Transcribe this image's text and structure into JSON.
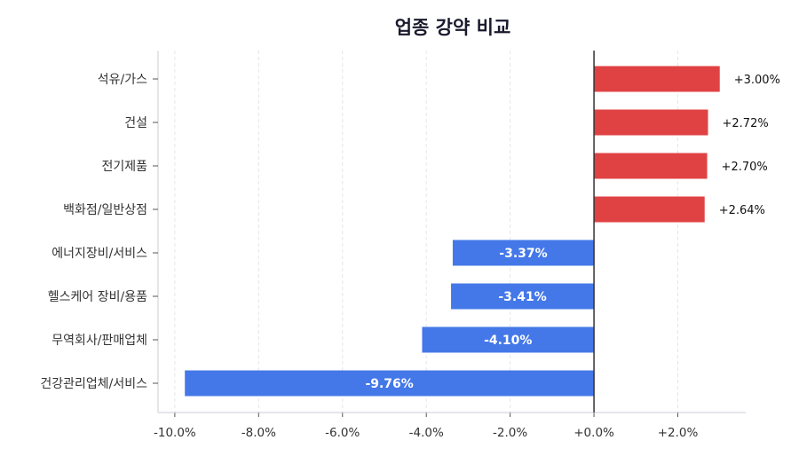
{
  "chart_data": {
    "type": "bar",
    "orientation": "horizontal",
    "title": "업종 강약 비교",
    "xlabel": "",
    "ylabel": "",
    "categories": [
      "석유/가스",
      "건설",
      "전기제품",
      "백화점/일반상점",
      "에너지장비/서비스",
      "헬스케어 장비/용품",
      "무역회사/판매업체",
      "건강관리업체/서비스"
    ],
    "values": [
      3.0,
      2.72,
      2.7,
      2.64,
      -3.37,
      -3.41,
      -4.1,
      -9.76
    ],
    "data_labels": [
      "+3.00%",
      "+2.72%",
      "+2.70%",
      "+2.64%",
      "-3.37%",
      "-3.41%",
      "-4.10%",
      "-9.76%"
    ],
    "xlim": [
      -10.4,
      3.62
    ],
    "xticks": [
      -10,
      -8,
      -6,
      -4,
      -2,
      0,
      2
    ],
    "xtick_labels": [
      "-10.0%",
      "-8.0%",
      "-6.0%",
      "-4.0%",
      "-2.0%",
      "+0.0%",
      "+2.0%"
    ],
    "grid": "vertical dashed",
    "colors": {
      "positive": "#e04243",
      "negative": "#4478e8",
      "zero_line": "#333333"
    }
  }
}
